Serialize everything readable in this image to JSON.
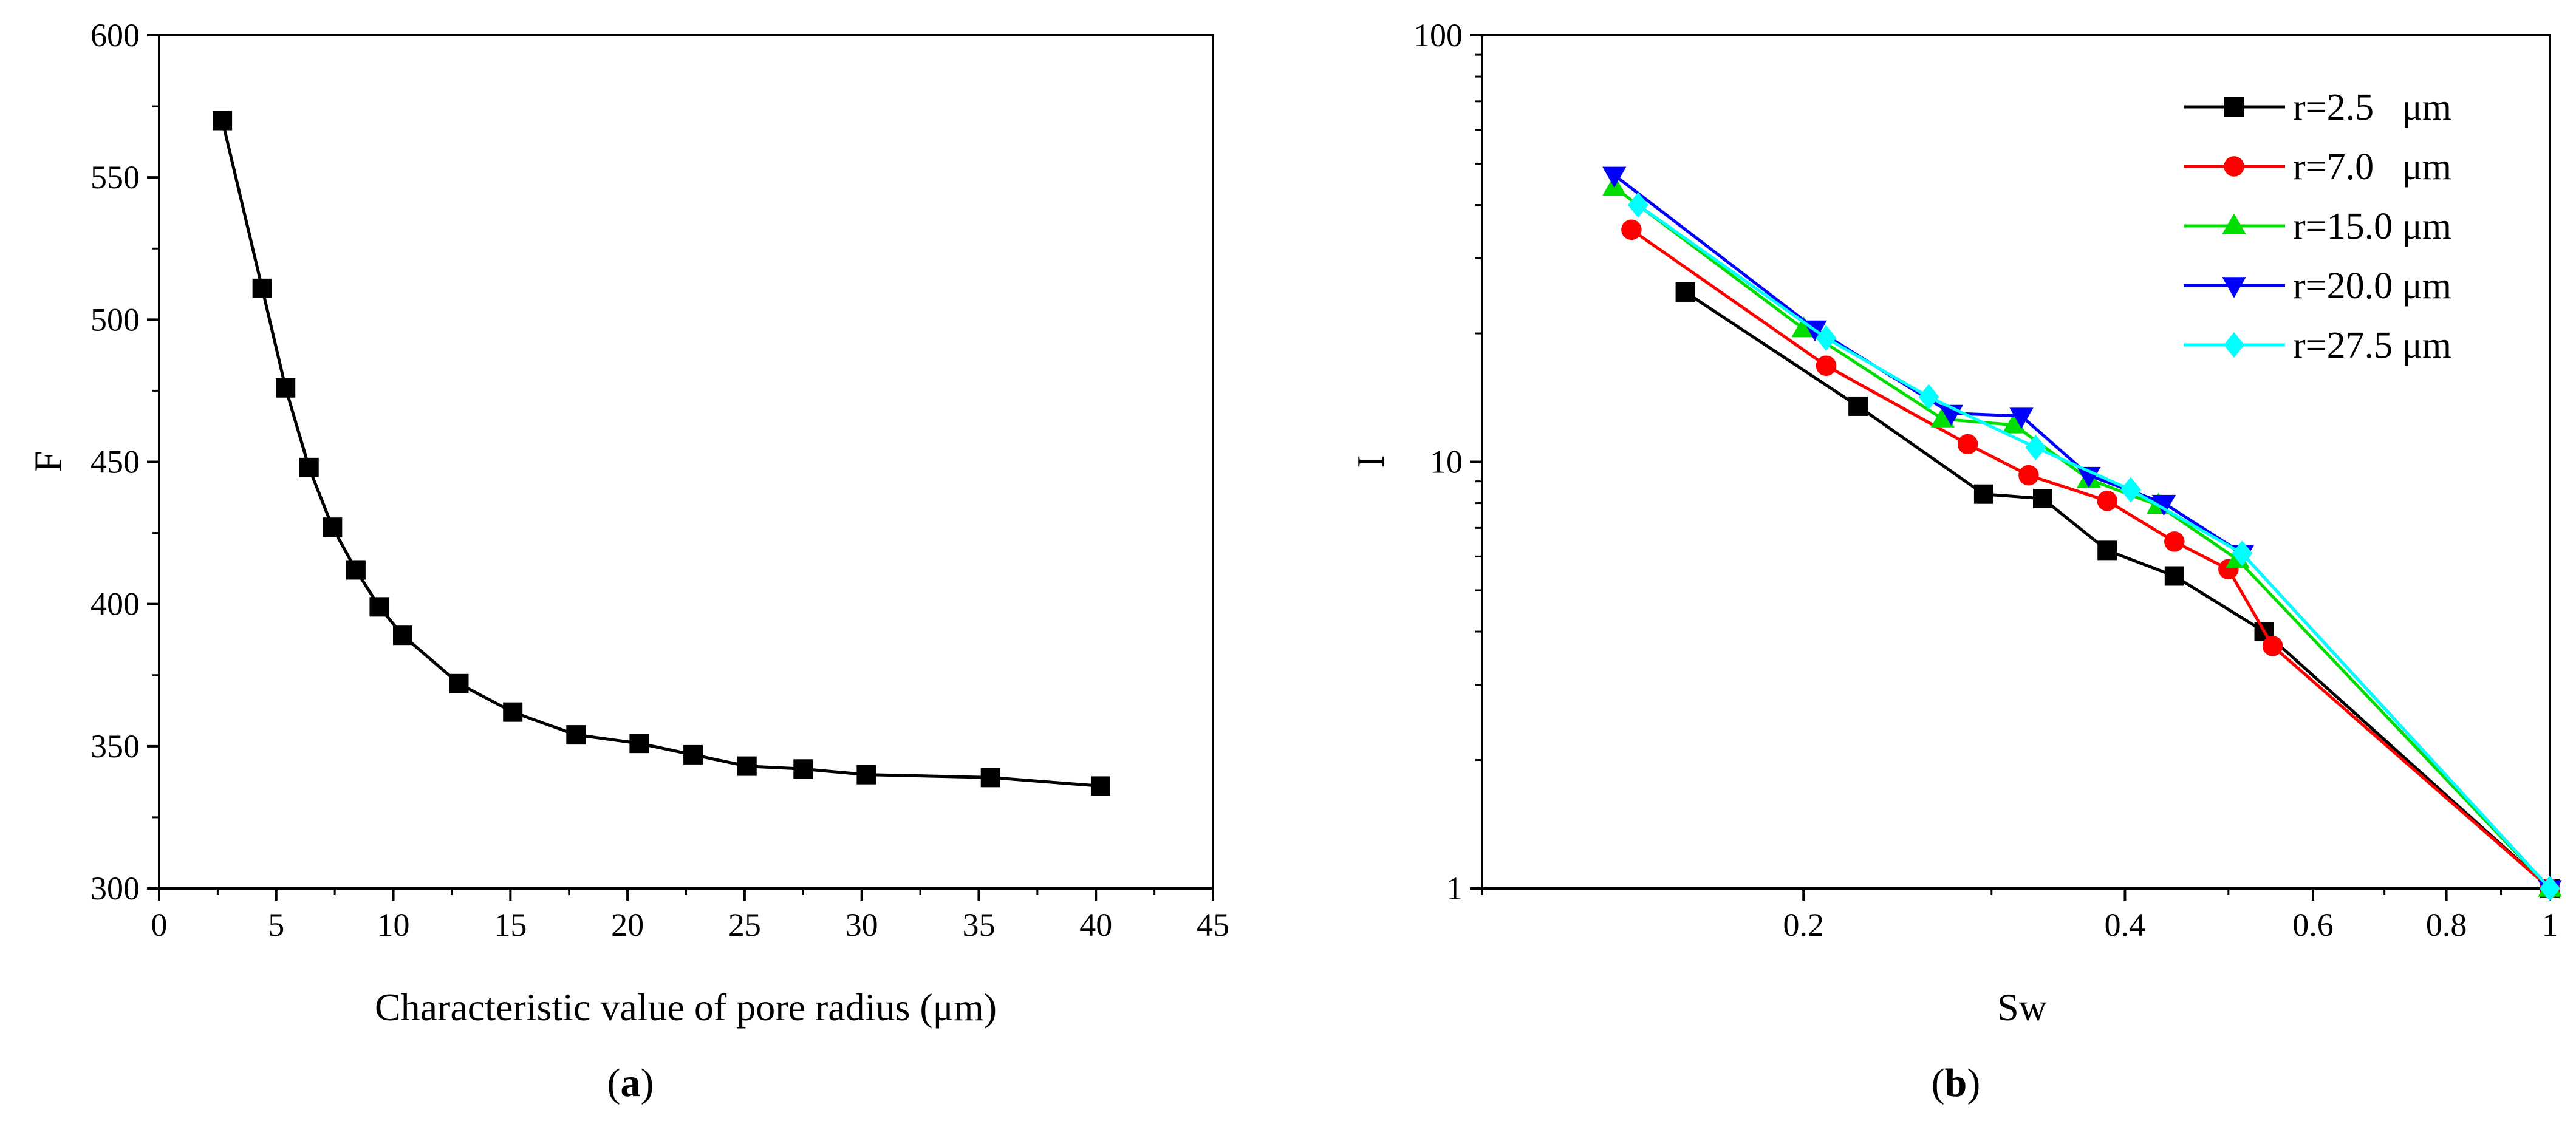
{
  "chart_data": [
    {
      "panel": "a",
      "type": "line",
      "caption": "(a)",
      "caption_letter": "a",
      "caption_open": "(",
      "caption_close": ")",
      "xlabel": "Characteristic value of pore radius (μm)",
      "ylabel": "F",
      "xlim": [
        0,
        45
      ],
      "ylim": [
        300,
        600
      ],
      "xticks": [
        0,
        5,
        10,
        15,
        20,
        25,
        30,
        35,
        40,
        45
      ],
      "yticks": [
        300,
        350,
        400,
        450,
        500,
        550,
        600
      ],
      "grid": false,
      "series": [
        {
          "name": "F",
          "color": "#000000",
          "marker": "square",
          "x": [
            2.7,
            4.4,
            5.4,
            6.4,
            7.4,
            8.4,
            9.4,
            10.4,
            12.8,
            15.1,
            17.8,
            20.5,
            22.8,
            25.1,
            27.5,
            30.2,
            35.5,
            40.2
          ],
          "y": [
            570,
            511,
            476,
            448,
            427,
            412,
            399,
            389,
            372,
            362,
            354,
            351,
            347,
            343,
            342,
            340,
            339,
            336
          ]
        }
      ]
    },
    {
      "panel": "b",
      "type": "line",
      "caption": "(b)",
      "caption_letter": "b",
      "caption_open": "(",
      "caption_close": ")",
      "xlabel": "Sw",
      "ylabel": "I",
      "xscale": "log",
      "yscale": "log",
      "xlim": [
        0.1,
        1
      ],
      "ylim": [
        1,
        100
      ],
      "xticks": [
        0.2,
        0.4,
        0.6,
        0.8,
        1
      ],
      "xtick_labels": [
        "0.2",
        "0.4",
        "0.6",
        "0.8",
        "1"
      ],
      "yticks": [
        1,
        10,
        100
      ],
      "ytick_labels": [
        "1",
        "10",
        "100"
      ],
      "grid": false,
      "legend_position": "top-right",
      "series": [
        {
          "name": "r=2.5   μm",
          "color": "#000000",
          "marker": "square",
          "x": [
            0.155,
            0.225,
            0.295,
            0.335,
            0.385,
            0.445,
            0.54,
            1.0
          ],
          "y": [
            25,
            13.5,
            8.4,
            8.2,
            6.2,
            5.4,
            4.0,
            1.0
          ]
        },
        {
          "name": "r=7.0   μm",
          "color": "#ff0000",
          "marker": "circle",
          "x": [
            0.138,
            0.21,
            0.285,
            0.325,
            0.385,
            0.445,
            0.5,
            0.55,
            1.0
          ],
          "y": [
            35,
            16.8,
            11.0,
            9.3,
            8.1,
            6.5,
            5.6,
            3.7,
            1.0
          ]
        },
        {
          "name": "r=15.0 μm",
          "color": "#00dd00",
          "marker": "triangle-up",
          "x": [
            0.133,
            0.2,
            0.27,
            0.315,
            0.37,
            0.43,
            0.51,
            1.0
          ],
          "y": [
            44,
            20.5,
            12.6,
            12.2,
            9.1,
            7.9,
            5.9,
            1.0
          ]
        },
        {
          "name": "r=20.0 μm",
          "color": "#0000ff",
          "marker": "triangle-down",
          "x": [
            0.133,
            0.205,
            0.275,
            0.32,
            0.37,
            0.435,
            0.515,
            1.0
          ],
          "y": [
            47,
            20.5,
            13.0,
            12.8,
            9.3,
            8.0,
            6.1,
            1.0
          ]
        },
        {
          "name": "r=27.5 μm",
          "color": "#00ffff",
          "marker": "diamond",
          "x": [
            0.14,
            0.21,
            0.262,
            0.33,
            0.405,
            0.515,
            1.0
          ],
          "y": [
            40,
            19.5,
            14.2,
            10.8,
            8.6,
            6.1,
            1.0
          ]
        }
      ]
    }
  ]
}
